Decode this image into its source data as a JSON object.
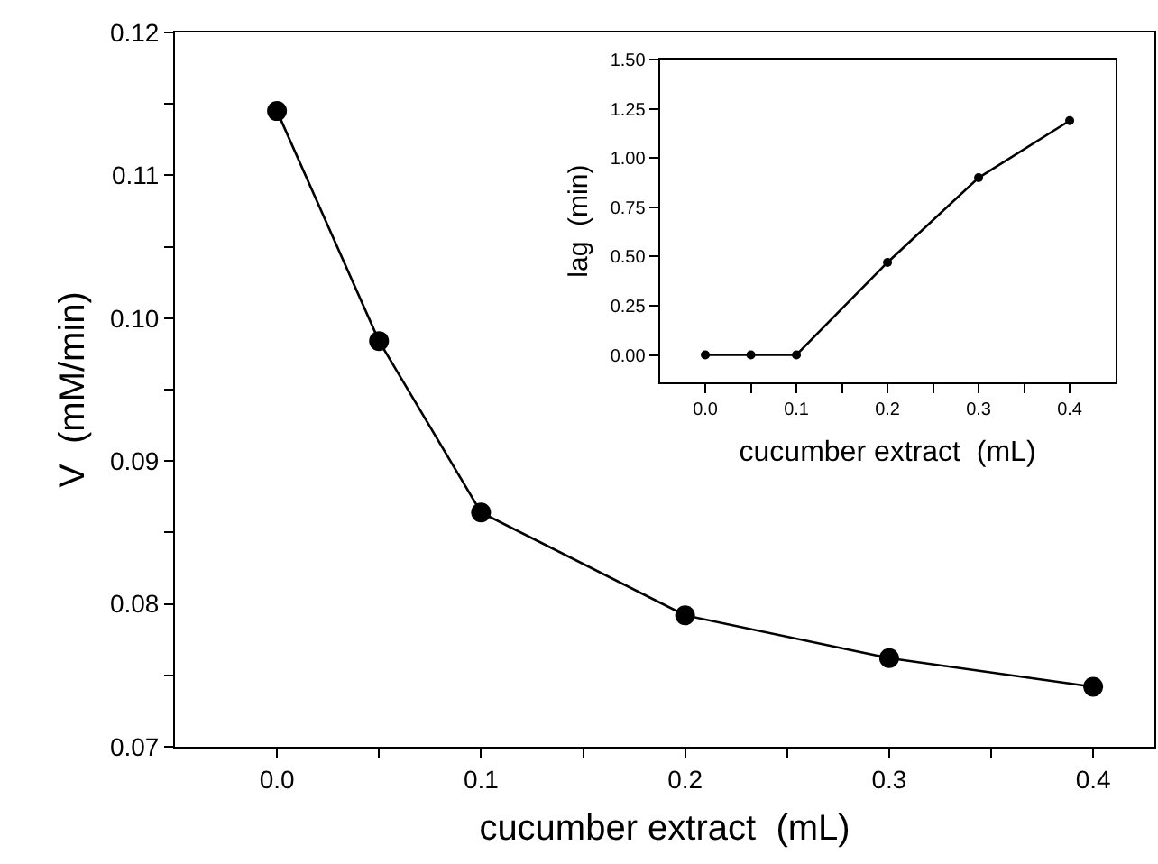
{
  "chart_data": [
    {
      "type": "line",
      "xlabel": "cucumber extract  (mL)",
      "ylabel": "V  (mM/min)",
      "marker": "circle",
      "line_style": "solid",
      "x": [
        0.0,
        0.05,
        0.1,
        0.2,
        0.3,
        0.4
      ],
      "series": [
        {
          "color": "#000000",
          "values": [
            0.1145,
            0.0984,
            0.0864,
            0.0792,
            0.0762,
            0.0742
          ]
        }
      ],
      "xlim": [
        -0.05,
        0.43
      ],
      "ylim": [
        0.07,
        0.12
      ],
      "xticks": [
        {
          "value": 0.0,
          "label": "0.0"
        },
        {
          "value": 0.05,
          "label": null
        },
        {
          "value": 0.1,
          "label": "0.1"
        },
        {
          "value": 0.15,
          "label": null
        },
        {
          "value": 0.2,
          "label": "0.2"
        },
        {
          "value": 0.25,
          "label": null
        },
        {
          "value": 0.3,
          "label": "0.3"
        },
        {
          "value": 0.35,
          "label": null
        },
        {
          "value": 0.4,
          "label": "0.4"
        }
      ],
      "yticks": [
        {
          "value": 0.07,
          "label": "0.07"
        },
        {
          "value": 0.075,
          "label": null
        },
        {
          "value": 0.08,
          "label": "0.08"
        },
        {
          "value": 0.085,
          "label": null
        },
        {
          "value": 0.09,
          "label": "0.09"
        },
        {
          "value": 0.095,
          "label": null
        },
        {
          "value": 0.1,
          "label": "0.10"
        },
        {
          "value": 0.105,
          "label": null
        },
        {
          "value": 0.11,
          "label": "0.11"
        },
        {
          "value": 0.115,
          "label": null
        },
        {
          "value": 0.12,
          "label": "0.12"
        }
      ]
    },
    {
      "type": "line",
      "xlabel": "cucumber extract  (mL)",
      "ylabel": "lag  (min)",
      "marker": "circle",
      "line_style": "solid",
      "x": [
        0.0,
        0.05,
        0.1,
        0.2,
        0.3,
        0.4
      ],
      "series": [
        {
          "color": "#000000",
          "values": [
            0.0,
            0.0,
            0.0,
            0.47,
            0.9,
            1.19
          ]
        }
      ],
      "xlim": [
        -0.05,
        0.45
      ],
      "ylim": [
        -0.14,
        1.5
      ],
      "xticks": [
        {
          "value": 0.0,
          "label": "0.0"
        },
        {
          "value": 0.05,
          "label": null
        },
        {
          "value": 0.1,
          "label": "0.1"
        },
        {
          "value": 0.15,
          "label": null
        },
        {
          "value": 0.2,
          "label": "0.2"
        },
        {
          "value": 0.25,
          "label": null
        },
        {
          "value": 0.3,
          "label": "0.3"
        },
        {
          "value": 0.35,
          "label": null
        },
        {
          "value": 0.4,
          "label": "0.4"
        }
      ],
      "yticks": [
        {
          "value": 0.0,
          "label": "0.00"
        },
        {
          "value": 0.25,
          "label": "0.25"
        },
        {
          "value": 0.5,
          "label": "0.50"
        },
        {
          "value": 0.75,
          "label": "0.75"
        },
        {
          "value": 1.0,
          "label": "1.00"
        },
        {
          "value": 1.25,
          "label": "1.25"
        },
        {
          "value": 1.5,
          "label": "1.50"
        }
      ]
    }
  ]
}
